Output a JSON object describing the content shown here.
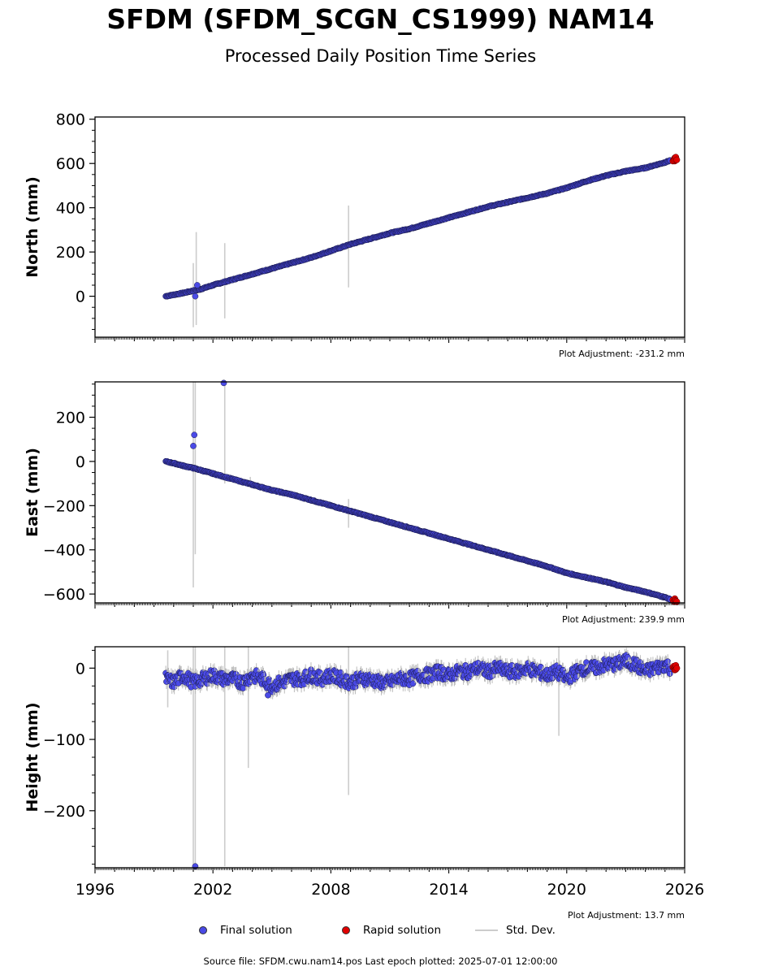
{
  "title": "SFDM (SFDM_SCGN_CS1999) NAM14",
  "subtitle": "Processed Daily Position Time Series",
  "legend": {
    "final": "Final solution",
    "rapid": "Rapid solution",
    "stddev": "Std. Dev."
  },
  "footer": "Source file: SFDM.cwu.nam14.pos  Last epoch plotted: 2025-07-01 12:00:00",
  "colors": {
    "final": "#4a4ae6",
    "rapid": "#e00000",
    "stddev": "#cccccc",
    "axis": "#000000"
  },
  "chart_data": [
    {
      "type": "scatter",
      "panel": "north",
      "ylabel": "North (mm)",
      "adjustment": "Plot Adjustment: -231.2 mm",
      "xlim": [
        1996,
        2026
      ],
      "ylim": [
        -185,
        810
      ],
      "yticks": [
        0,
        200,
        400,
        600,
        800
      ],
      "xticks": [
        1996,
        2002,
        2008,
        2014,
        2020,
        2026
      ],
      "show_xtick_labels": false,
      "series": [
        {
          "name": "Final solution",
          "x": [
            1999.6,
            1999.9,
            2000.2,
            2000.5,
            2001.0,
            2001.3,
            2002.0,
            2003.0,
            2004.0,
            2005.0,
            2006.0,
            2007.0,
            2008.0,
            2009.0,
            2010.0,
            2011.0,
            2012.0,
            2013.0,
            2014.0,
            2015.0,
            2016.0,
            2017.0,
            2018.0,
            2019.0,
            2020.0,
            2021.0,
            2022.0,
            2023.0,
            2024.0,
            2025.0,
            2025.3
          ],
          "y": [
            0,
            5,
            10,
            15,
            25,
            30,
            50,
            75,
            100,
            125,
            150,
            175,
            205,
            235,
            260,
            285,
            305,
            330,
            355,
            380,
            405,
            425,
            445,
            465,
            490,
            520,
            545,
            565,
            580,
            605,
            615
          ],
          "outliers": [
            [
              2001.1,
              0
            ],
            [
              2001.2,
              50
            ]
          ]
        },
        {
          "name": "Rapid solution",
          "x": [
            2025.4,
            2025.45,
            2025.5
          ],
          "y": [
            618,
            620,
            622
          ]
        }
      ],
      "stddev_bars": [
        [
          2001.0,
          -140,
          150
        ],
        [
          2001.15,
          -130,
          290
        ],
        [
          2002.6,
          -100,
          240
        ],
        [
          2008.9,
          40,
          410
        ]
      ]
    },
    {
      "type": "scatter",
      "panel": "east",
      "ylabel": "East (mm)",
      "adjustment": "Plot Adjustment: 239.9 mm",
      "xlim": [
        1996,
        2026
      ],
      "ylim": [
        -640,
        360
      ],
      "yticks": [
        -600,
        -400,
        -200,
        0,
        200
      ],
      "xticks": [
        1996,
        2002,
        2008,
        2014,
        2020,
        2026
      ],
      "show_xtick_labels": false,
      "series": [
        {
          "name": "Final solution",
          "x": [
            1999.6,
            2000.0,
            2000.5,
            2001.0,
            2002.0,
            2003.0,
            2004.0,
            2005.0,
            2006.0,
            2007.0,
            2008.0,
            2009.0,
            2010.0,
            2011.0,
            2012.0,
            2013.0,
            2014.0,
            2015.0,
            2016.0,
            2017.0,
            2018.0,
            2019.0,
            2020.0,
            2021.0,
            2022.0,
            2023.0,
            2024.0,
            2025.0,
            2025.3
          ],
          "y": [
            0,
            -8,
            -20,
            -30,
            -55,
            -80,
            -105,
            -130,
            -150,
            -175,
            -200,
            -225,
            -250,
            -275,
            -300,
            -325,
            -350,
            -375,
            -400,
            -425,
            -450,
            -475,
            -505,
            -525,
            -545,
            -570,
            -590,
            -615,
            -625
          ],
          "outliers": [
            [
              2001.0,
              70
            ],
            [
              2001.05,
              120
            ],
            [
              2002.55,
              355
            ]
          ]
        },
        {
          "name": "Rapid solution",
          "x": [
            2025.4,
            2025.5
          ],
          "y": [
            -628,
            -632
          ]
        }
      ],
      "stddev_bars": [
        [
          2001.0,
          -570,
          360
        ],
        [
          2001.1,
          -420,
          360
        ],
        [
          2002.6,
          -100,
          360
        ],
        [
          2003.9,
          -110,
          -70
        ],
        [
          2008.9,
          -300,
          -170
        ]
      ]
    },
    {
      "type": "scatter",
      "panel": "height",
      "ylabel": "Height (mm)",
      "adjustment": "Plot Adjustment: 13.7 mm",
      "xlim": [
        1996,
        2026
      ],
      "ylim": [
        -280,
        30
      ],
      "yticks": [
        -200,
        -100,
        0
      ],
      "xticks": [
        1996,
        2002,
        2008,
        2014,
        2020,
        2026
      ],
      "show_xtick_labels": true,
      "series": [
        {
          "name": "Final solution",
          "x": [
            1999.6,
            2000.0,
            2000.5,
            2001.0,
            2001.5,
            2002.0,
            2002.5,
            2003.0,
            2003.5,
            2004.0,
            2004.5,
            2005.0,
            2005.5,
            2006.0,
            2006.5,
            2007.0,
            2007.5,
            2008.0,
            2008.5,
            2009.0,
            2009.5,
            2010.0,
            2010.5,
            2011.0,
            2011.5,
            2012.0,
            2012.5,
            2013.0,
            2013.5,
            2014.0,
            2014.5,
            2015.0,
            2015.5,
            2016.0,
            2016.5,
            2017.0,
            2017.5,
            2018.0,
            2018.5,
            2019.0,
            2019.5,
            2020.0,
            2020.5,
            2021.0,
            2021.5,
            2022.0,
            2022.5,
            2023.0,
            2023.5,
            2024.0,
            2024.5,
            2025.0,
            2025.3
          ],
          "y": [
            -15,
            -20,
            -10,
            -20,
            -15,
            -10,
            -15,
            -15,
            -20,
            -10,
            -15,
            -25,
            -20,
            -15,
            -15,
            -10,
            -15,
            -10,
            -15,
            -20,
            -15,
            -15,
            -20,
            -20,
            -15,
            -15,
            -10,
            -10,
            -5,
            -10,
            -5,
            -5,
            0,
            -5,
            0,
            -5,
            -5,
            0,
            -5,
            -10,
            -5,
            -15,
            -5,
            0,
            0,
            5,
            5,
            10,
            5,
            -5,
            0,
            5,
            0
          ],
          "outliers": [
            [
              2001.1,
              -278
            ],
            [
              2004.8,
              -38
            ]
          ]
        },
        {
          "name": "Rapid solution",
          "x": [
            2025.4,
            2025.45,
            2025.5
          ],
          "y": [
            0,
            3,
            -2
          ]
        }
      ],
      "stddev_bars": [
        [
          2001.0,
          -278,
          30
        ],
        [
          2001.1,
          -278,
          30
        ],
        [
          2002.6,
          -278,
          30
        ],
        [
          2003.8,
          -140,
          30
        ],
        [
          2008.9,
          -178,
          30
        ],
        [
          2019.6,
          -95,
          30
        ],
        [
          1999.7,
          -55,
          25
        ]
      ]
    }
  ]
}
